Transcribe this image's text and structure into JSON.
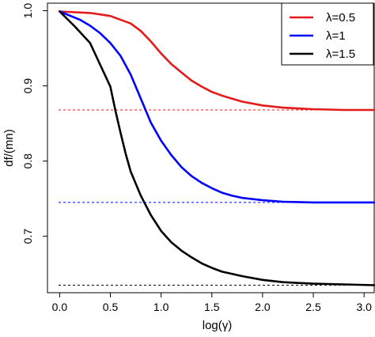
{
  "chart_data": {
    "type": "line",
    "title": "",
    "xlabel": "log(γ)",
    "ylabel": "df/(mn)",
    "xlim": [
      -0.12,
      3.1
    ],
    "ylim": [
      0.625,
      1.01
    ],
    "xticks": [
      0.0,
      0.5,
      1.0,
      1.5,
      2.0,
      2.5,
      3.0
    ],
    "xtick_labels": [
      "0.0",
      "0.5",
      "1.0",
      "1.5",
      "2.0",
      "2.5",
      "3.0"
    ],
    "yticks": [
      0.7,
      0.8,
      0.9,
      1.0
    ],
    "ytick_labels": [
      "0.7",
      "0.8",
      "0.9",
      "1.0"
    ],
    "grid": false,
    "legend_position": "top-right",
    "series": [
      {
        "name": "λ=0.5",
        "color": "#e41a1c",
        "x": [
          0.0,
          0.3,
          0.5,
          0.7,
          0.8,
          0.9,
          1.0,
          1.1,
          1.2,
          1.3,
          1.4,
          1.5,
          1.6,
          1.7,
          1.8,
          2.0,
          2.2,
          2.5,
          2.8,
          3.1
        ],
        "y": [
          0.999,
          0.997,
          0.993,
          0.983,
          0.973,
          0.959,
          0.943,
          0.929,
          0.918,
          0.907,
          0.899,
          0.892,
          0.887,
          0.883,
          0.879,
          0.874,
          0.871,
          0.869,
          0.868,
          0.868
        ]
      },
      {
        "name": "λ=1",
        "color": "#0000ff",
        "x": [
          0.0,
          0.2,
          0.3,
          0.4,
          0.5,
          0.6,
          0.7,
          0.8,
          0.9,
          1.0,
          1.1,
          1.2,
          1.3,
          1.4,
          1.5,
          1.6,
          1.7,
          1.8,
          2.0,
          2.2,
          2.5,
          2.8,
          3.1
        ],
        "y": [
          0.999,
          0.988,
          0.98,
          0.97,
          0.957,
          0.94,
          0.915,
          0.883,
          0.851,
          0.827,
          0.808,
          0.792,
          0.78,
          0.771,
          0.764,
          0.758,
          0.754,
          0.751,
          0.748,
          0.746,
          0.745,
          0.745,
          0.745
        ]
      },
      {
        "name": "λ=1.5",
        "color": "#000000",
        "x": [
          0.0,
          0.15,
          0.3,
          0.4,
          0.5,
          0.55,
          0.6,
          0.65,
          0.7,
          0.8,
          0.9,
          1.0,
          1.1,
          1.2,
          1.3,
          1.4,
          1.5,
          1.6,
          1.8,
          2.0,
          2.2,
          2.5,
          2.8,
          3.1
        ],
        "y": [
          0.999,
          0.979,
          0.957,
          0.928,
          0.899,
          0.867,
          0.838,
          0.81,
          0.786,
          0.754,
          0.728,
          0.707,
          0.692,
          0.681,
          0.672,
          0.664,
          0.658,
          0.653,
          0.647,
          0.642,
          0.639,
          0.637,
          0.636,
          0.635
        ]
      }
    ],
    "reference_lines": [
      {
        "y": 0.868,
        "color": "#e41a1c",
        "style": "dashed"
      },
      {
        "y": 0.745,
        "color": "#0000ff",
        "style": "dashed"
      },
      {
        "y": 0.635,
        "color": "#000000",
        "style": "dashed"
      }
    ]
  }
}
